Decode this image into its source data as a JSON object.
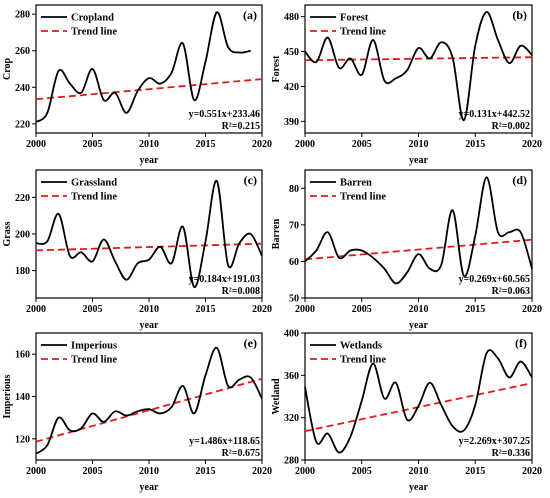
{
  "chart_data": [
    {
      "type": "line",
      "panel": "(a)",
      "ylabel": "Crop",
      "xlabel": "year",
      "xlim": [
        2000,
        2020
      ],
      "xticks": [
        2000,
        2005,
        2010,
        2015,
        2020
      ],
      "ylim": [
        215,
        285
      ],
      "yticks": [
        220,
        240,
        260,
        280
      ],
      "x": [
        2000,
        2001,
        2002,
        2003,
        2004,
        2005,
        2006,
        2007,
        2008,
        2009,
        2010,
        2011,
        2012,
        2013,
        2014,
        2015,
        2016,
        2017,
        2018,
        2019
      ],
      "series": [
        {
          "name": "Cropland",
          "values": [
            221,
            226,
            249,
            242,
            237,
            250,
            233,
            237,
            226,
            238,
            245,
            242,
            248,
            264,
            233,
            254,
            281,
            262,
            259,
            260
          ],
          "color": "#000000"
        }
      ],
      "trend": {
        "name": "Trend line",
        "slope": 0.551,
        "intercept": 233.46,
        "color": "#e31a1c"
      },
      "equation": "y=0.551x+233.46",
      "r2": "R²=0.215"
    },
    {
      "type": "line",
      "panel": "(b)",
      "ylabel": "Forest",
      "xlabel": "year",
      "xlim": [
        2000,
        2020
      ],
      "xticks": [
        2000,
        2005,
        2010,
        2015,
        2020
      ],
      "ylim": [
        380,
        490
      ],
      "yticks": [
        390,
        420,
        450,
        480
      ],
      "x": [
        2000,
        2001,
        2002,
        2003,
        2004,
        2005,
        2006,
        2007,
        2008,
        2009,
        2010,
        2011,
        2012,
        2013,
        2014,
        2015,
        2016,
        2017,
        2018,
        2019,
        2020
      ],
      "series": [
        {
          "name": "Forest",
          "values": [
            450,
            441,
            462,
            436,
            444,
            430,
            460,
            425,
            427,
            434,
            453,
            444,
            458,
            445,
            391,
            455,
            484,
            460,
            440,
            455,
            447
          ],
          "color": "#000000"
        }
      ],
      "trend": {
        "name": "Trend line",
        "slope": 0.131,
        "intercept": 442.52,
        "color": "#e31a1c"
      },
      "equation": "y=0.131x+442.52",
      "r2": "R²=0.002"
    },
    {
      "type": "line",
      "panel": "(c)",
      "ylabel": "Grass",
      "xlabel": "year",
      "xlim": [
        2000,
        2020
      ],
      "xticks": [
        2000,
        2005,
        2010,
        2015,
        2020
      ],
      "ylim": [
        165,
        235
      ],
      "yticks": [
        180,
        200,
        220
      ],
      "x": [
        2000,
        2001,
        2002,
        2003,
        2004,
        2005,
        2006,
        2007,
        2008,
        2009,
        2010,
        2011,
        2012,
        2013,
        2014,
        2015,
        2016,
        2017,
        2018,
        2019,
        2020
      ],
      "series": [
        {
          "name": "Grassland",
          "values": [
            195,
            196,
            211,
            188,
            190,
            185,
            197,
            185,
            175,
            184,
            186,
            193,
            184,
            204,
            171,
            196,
            229,
            183,
            195,
            200,
            188
          ],
          "color": "#000000"
        }
      ],
      "trend": {
        "name": "Trend line",
        "slope": 0.184,
        "intercept": 191.03,
        "color": "#e31a1c"
      },
      "equation": "y=0.184x+191.03",
      "r2": "R²=0.008"
    },
    {
      "type": "line",
      "panel": "(d)",
      "ylabel": "Barren",
      "xlabel": "year",
      "xlim": [
        2000,
        2020
      ],
      "xticks": [
        2000,
        2005,
        2010,
        2015,
        2020
      ],
      "ylim": [
        50,
        85
      ],
      "yticks": [
        50,
        60,
        70,
        80
      ],
      "x": [
        2000,
        2001,
        2002,
        2003,
        2004,
        2005,
        2006,
        2007,
        2008,
        2009,
        2010,
        2011,
        2012,
        2013,
        2014,
        2015,
        2016,
        2017,
        2018,
        2019,
        2020
      ],
      "series": [
        {
          "name": "Barren",
          "values": [
            60,
            63,
            68,
            61,
            63,
            63,
            61,
            58,
            54,
            57,
            62,
            58,
            59,
            74,
            56,
            67,
            83,
            68,
            68,
            68,
            58
          ],
          "color": "#000000"
        }
      ],
      "trend": {
        "name": "Trend line",
        "slope": 0.269,
        "intercept": 60.565,
        "color": "#e31a1c"
      },
      "equation": "y=0.269x+60.565",
      "r2": "R²=0.063"
    },
    {
      "type": "line",
      "panel": "(e)",
      "ylabel": "Imperious",
      "xlabel": "year",
      "xlim": [
        2000,
        2020
      ],
      "xticks": [
        2000,
        2005,
        2010,
        2015,
        2020
      ],
      "ylim": [
        110,
        170
      ],
      "yticks": [
        120,
        140,
        160
      ],
      "x": [
        2000,
        2001,
        2002,
        2003,
        2004,
        2005,
        2006,
        2007,
        2008,
        2009,
        2010,
        2011,
        2012,
        2013,
        2014,
        2015,
        2016,
        2017,
        2018,
        2019,
        2020
      ],
      "series": [
        {
          "name": "Imperious",
          "values": [
            113,
            117,
            130,
            124,
            125,
            132,
            128,
            133,
            131,
            133,
            134,
            132,
            135,
            145,
            132,
            150,
            163,
            145,
            148,
            149,
            139
          ],
          "color": "#000000"
        }
      ],
      "trend": {
        "name": "Trend line",
        "slope": 1.486,
        "intercept": 118.65,
        "color": "#e31a1c"
      },
      "equation": "y=1.486x+118.65",
      "r2": "R²=0.675"
    },
    {
      "type": "line",
      "panel": "(f)",
      "ylabel": "Wetland",
      "xlabel": "year",
      "xlim": [
        2000,
        2020
      ],
      "xticks": [
        2000,
        2005,
        2010,
        2015,
        2020
      ],
      "ylim": [
        280,
        400
      ],
      "yticks": [
        280,
        320,
        360,
        400
      ],
      "x": [
        2000,
        2001,
        2002,
        2003,
        2004,
        2005,
        2006,
        2007,
        2008,
        2009,
        2010,
        2011,
        2012,
        2013,
        2014,
        2015,
        2016,
        2017,
        2018,
        2019,
        2020
      ],
      "series": [
        {
          "name": "Wetlands",
          "values": [
            349,
            297,
            305,
            287,
            302,
            336,
            371,
            338,
            353,
            318,
            331,
            353,
            332,
            312,
            308,
            332,
            381,
            376,
            358,
            373,
            358
          ],
          "color": "#000000"
        }
      ],
      "trend": {
        "name": "Trend line",
        "slope": 2.269,
        "intercept": 307.25,
        "color": "#e31a1c"
      },
      "equation": "y=2.269x+307.25",
      "r2": "R²=0.336"
    }
  ]
}
